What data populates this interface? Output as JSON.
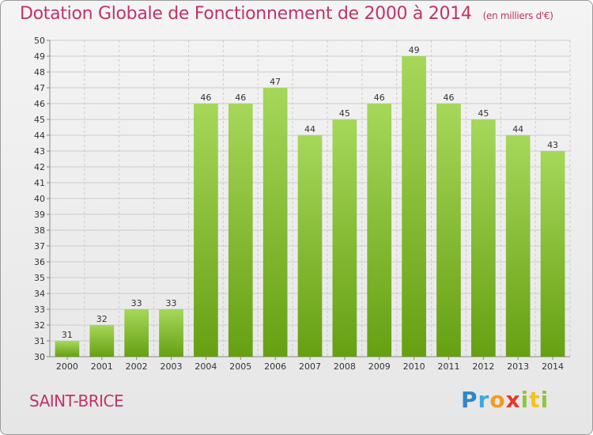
{
  "header": {
    "title": "Dotation Globale de Fonctionnement de 2000 à 2014",
    "subtitle": "(en milliers d'€)"
  },
  "footer": {
    "commune": "SAINT-BRICE",
    "logo": "Proxiti"
  },
  "colors": {
    "bar_light": "#a6d75a",
    "bar_dark": "#66a012",
    "title": "#c0336a",
    "grid": "#cccccc"
  },
  "chart_data": {
    "type": "bar",
    "title": "Dotation Globale de Fonctionnement de 2000 à 2014",
    "subtitle": "(en milliers d'€)",
    "categories": [
      "2000",
      "2001",
      "2002",
      "2003",
      "2004",
      "2005",
      "2006",
      "2007",
      "2008",
      "2009",
      "2010",
      "2011",
      "2012",
      "2013",
      "2014"
    ],
    "values": [
      31,
      32,
      33,
      33,
      46,
      46,
      47,
      44,
      45,
      46,
      49,
      46,
      45,
      44,
      43
    ],
    "ylim": [
      30,
      50
    ],
    "yticks": [
      30,
      31,
      32,
      33,
      34,
      35,
      36,
      37,
      38,
      39,
      40,
      41,
      42,
      43,
      44,
      45,
      46,
      47,
      48,
      49,
      50
    ],
    "grid": true,
    "data_labels": true,
    "xlabel": "",
    "ylabel": ""
  }
}
